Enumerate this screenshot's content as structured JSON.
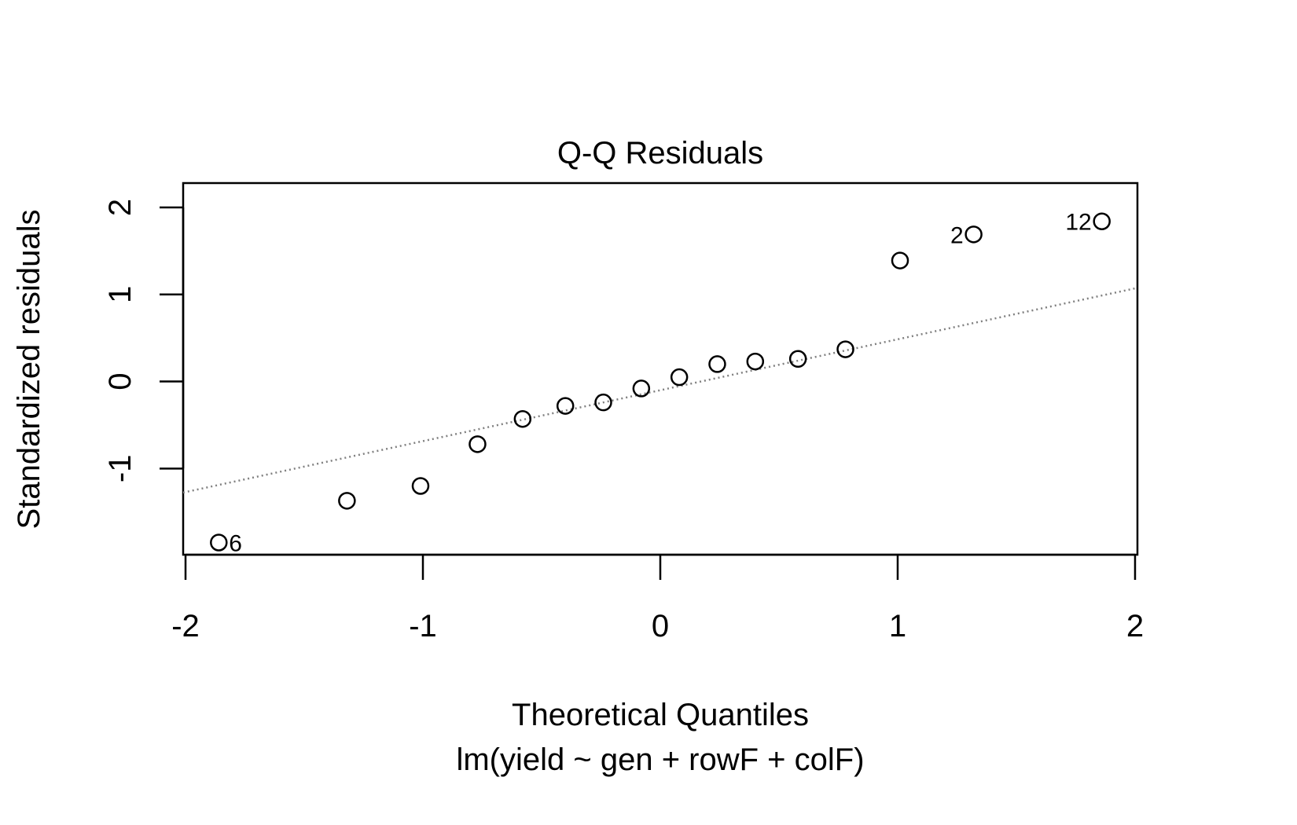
{
  "chart_data": {
    "type": "scatter",
    "title": "Q-Q Residuals",
    "xlabel": "Theoretical Quantiles",
    "ylabel": "Standardized residuals",
    "subtitle": "lm(yield ~ gen + rowF + colF)",
    "xlim": [
      -2.01,
      2.01
    ],
    "ylim": [
      -1.99,
      2.28
    ],
    "xticks": [
      -2,
      -1,
      0,
      1,
      2
    ],
    "xtick_labels": [
      "-2",
      "-1",
      "0",
      "1",
      "2"
    ],
    "yticks": [
      -1,
      0,
      1,
      2
    ],
    "ytick_labels": [
      "-1",
      "0",
      "1",
      "2"
    ],
    "grid": false,
    "points": [
      {
        "x": -1.86,
        "y": -1.85,
        "label": "6",
        "label_side": "right"
      },
      {
        "x": -1.32,
        "y": -1.37
      },
      {
        "x": -1.01,
        "y": -1.2
      },
      {
        "x": -0.77,
        "y": -0.72
      },
      {
        "x": -0.58,
        "y": -0.43
      },
      {
        "x": -0.4,
        "y": -0.28
      },
      {
        "x": -0.24,
        "y": -0.24
      },
      {
        "x": -0.08,
        "y": -0.08
      },
      {
        "x": 0.08,
        "y": 0.05
      },
      {
        "x": 0.24,
        "y": 0.2
      },
      {
        "x": 0.4,
        "y": 0.23
      },
      {
        "x": 0.58,
        "y": 0.26
      },
      {
        "x": 0.78,
        "y": 0.37
      },
      {
        "x": 1.01,
        "y": 1.39
      },
      {
        "x": 1.32,
        "y": 1.69,
        "label": "2",
        "label_side": "left"
      },
      {
        "x": 1.86,
        "y": 1.84,
        "label": "12",
        "label_side": "left"
      }
    ],
    "reference_line": {
      "slope": 0.585,
      "intercept": -0.1,
      "style": "dotted",
      "color": "#808080"
    }
  }
}
